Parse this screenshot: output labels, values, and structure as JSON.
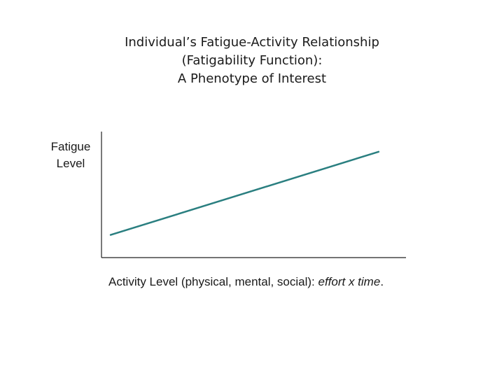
{
  "title": {
    "line1": "Individual’s Fatigue-Activity Relationship",
    "line2": "(Fatigability Function):",
    "line3": "A Phenotype of Interest"
  },
  "ylabel": {
    "line1": "Fatigue",
    "line2": "Level"
  },
  "xlabel": {
    "plain": "Activity Level (physical, mental, social): ",
    "italic": "effort x time",
    "end": "."
  },
  "chart_data": {
    "type": "line",
    "title": "Individual’s Fatigue-Activity Relationship (Fatigability Function): A Phenotype of Interest",
    "xlabel": "Activity Level (physical, mental, social): effort x time.",
    "ylabel": "Fatigue Level",
    "axis_ticks": "none",
    "grid": false,
    "colors": {
      "line": "#2a7f80",
      "axes": "#222222"
    },
    "series": [
      {
        "x": [
          0.03,
          0.91
        ],
        "y": [
          0.18,
          0.84
        ]
      }
    ],
    "xlim": [
      0,
      1
    ],
    "ylim": [
      0,
      1
    ]
  }
}
